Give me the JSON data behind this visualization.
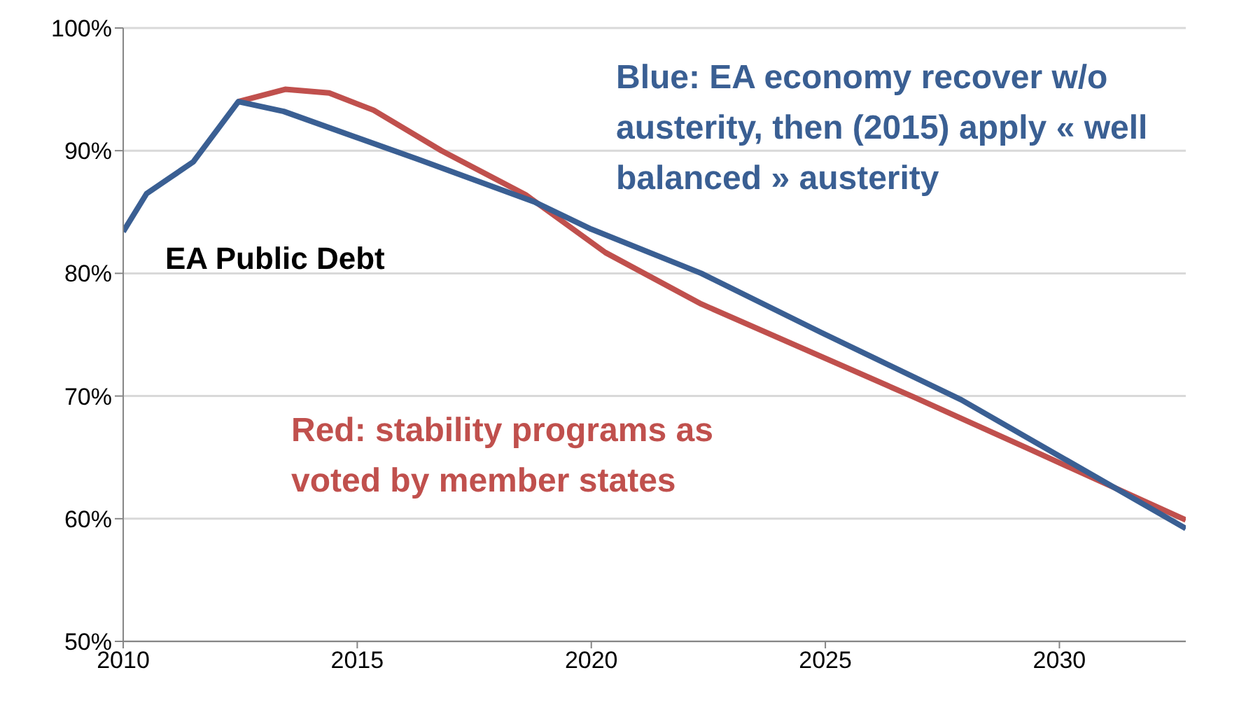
{
  "chart_data": {
    "type": "line",
    "title": "EA Public Debt",
    "annotations": [
      "Blue: EA economy recover w/o austerity, then (2015) apply « well balanced » austerity",
      "Red: stability programs as voted by member states"
    ],
    "series": [
      {
        "color": "#3a5f93",
        "x": [
          2010,
          2010.5,
          2011.5,
          2012.46,
          2013.43,
          2016.3,
          2018.8,
          2020,
          2022.35,
          2024.9,
          2027.9,
          2032.7
        ],
        "values": [
          83.4,
          86.5,
          89.1,
          94.0,
          93.2,
          89.3,
          85.8,
          83.6,
          80.0,
          75.2,
          69.7,
          59.2
        ]
      },
      {
        "color": "#c0504d",
        "x": [
          2012.46,
          2013.46,
          2014.4,
          2015.35,
          2016.8,
          2018.6,
          2020.3,
          2022.35,
          2026.9,
          2029.4,
          2032.7
        ],
        "values": [
          94.0,
          95.0,
          94.7,
          93.3,
          90.0,
          86.4,
          81.7,
          77.5,
          69.9,
          65.6,
          59.9
        ]
      }
    ],
    "xlim": [
      2010,
      2032.7
    ],
    "xticks": [
      2010,
      2015,
      2020,
      2025,
      2030
    ],
    "ylim": [
      50,
      100
    ],
    "yticks": [
      {
        "value": 50,
        "label": "50%"
      },
      {
        "value": 60,
        "label": "60%"
      },
      {
        "value": 70,
        "label": "70%"
      },
      {
        "value": 80,
        "label": "80%"
      },
      {
        "value": 90,
        "label": "90%"
      },
      {
        "value": 100,
        "label": "100%"
      }
    ],
    "grid": "y",
    "legend": false,
    "marker": "none",
    "line_style": "solid"
  }
}
